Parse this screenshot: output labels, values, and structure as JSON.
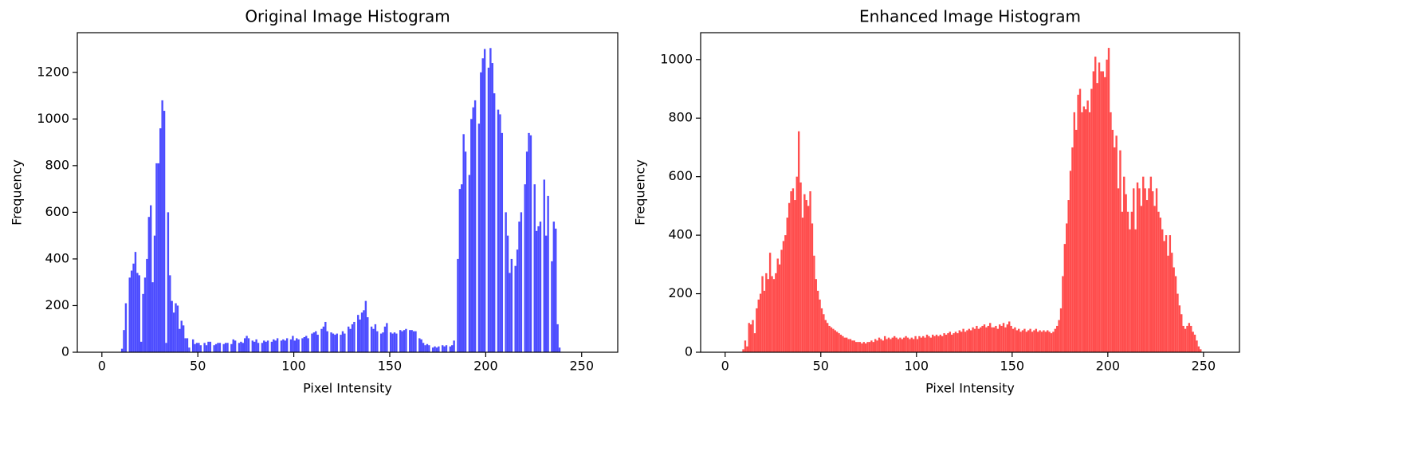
{
  "chart_data": [
    {
      "type": "histogram",
      "title": "Original Image Histogram",
      "xlabel": "Pixel Intensity",
      "ylabel": "Frequency",
      "color": "#4d4dff",
      "bins": [
        0,
        1,
        2,
        3,
        4,
        5,
        6,
        7,
        8,
        9,
        10,
        11,
        12,
        13,
        14,
        15,
        16,
        17,
        18,
        19,
        20,
        21,
        22,
        23,
        24,
        25,
        26,
        27,
        28,
        29,
        30,
        31,
        32,
        33,
        34,
        35,
        36,
        37,
        38,
        39,
        40,
        41,
        42,
        43,
        44,
        45,
        46,
        47,
        48,
        49,
        50,
        51,
        52,
        53,
        54,
        55,
        56,
        57,
        58,
        59,
        60,
        61,
        62,
        63,
        64,
        65,
        66,
        67,
        68,
        69,
        70,
        71,
        72,
        73,
        74,
        75,
        76,
        77,
        78,
        79,
        80,
        81,
        82,
        83,
        84,
        85,
        86,
        87,
        88,
        89,
        90,
        91,
        92,
        93,
        94,
        95,
        96,
        97,
        98,
        99,
        100,
        101,
        102,
        103,
        104,
        105,
        106,
        107,
        108,
        109,
        110,
        111,
        112,
        113,
        114,
        115,
        116,
        117,
        118,
        119,
        120,
        121,
        122,
        123,
        124,
        125,
        126,
        127,
        128,
        129,
        130,
        131,
        132,
        133,
        134,
        135,
        136,
        137,
        138,
        139,
        140,
        141,
        142,
        143,
        144,
        145,
        146,
        147,
        148,
        149,
        150,
        151,
        152,
        153,
        154,
        155,
        156,
        157,
        158,
        159,
        160,
        161,
        162,
        163,
        164,
        165,
        166,
        167,
        168,
        169,
        170,
        171,
        172,
        173,
        174,
        175,
        176,
        177,
        178,
        179,
        180,
        181,
        182,
        183,
        184,
        185,
        186,
        187,
        188,
        189,
        190,
        191,
        192,
        193,
        194,
        195,
        196,
        197,
        198,
        199,
        200,
        201,
        202,
        203,
        204,
        205,
        206,
        207,
        208,
        209,
        210,
        211,
        212,
        213,
        214,
        215,
        216,
        217,
        218,
        219,
        220,
        221,
        222,
        223,
        224,
        225,
        226,
        227,
        228,
        229,
        230,
        231,
        232,
        233,
        234,
        235,
        236,
        237,
        238,
        239,
        240,
        241,
        242,
        243,
        244,
        245,
        246,
        247,
        248,
        249,
        250,
        251,
        252,
        253,
        254,
        255,
        256
      ],
      "values": [
        0,
        0,
        0,
        0,
        0,
        0,
        0,
        0,
        0,
        0,
        15,
        95,
        210,
        0,
        320,
        350,
        380,
        430,
        340,
        330,
        45,
        250,
        320,
        400,
        580,
        630,
        300,
        500,
        810,
        810,
        960,
        1080,
        1035,
        40,
        600,
        330,
        220,
        170,
        210,
        200,
        100,
        135,
        115,
        60,
        60,
        20,
        0,
        55,
        35,
        40,
        40,
        30,
        0,
        40,
        30,
        45,
        45,
        0,
        30,
        35,
        40,
        40,
        0,
        35,
        40,
        40,
        0,
        35,
        55,
        50,
        0,
        40,
        45,
        40,
        60,
        70,
        60,
        0,
        50,
        45,
        55,
        40,
        0,
        40,
        50,
        45,
        50,
        0,
        45,
        55,
        50,
        60,
        0,
        50,
        55,
        50,
        60,
        0,
        55,
        70,
        50,
        60,
        55,
        0,
        60,
        65,
        70,
        60,
        0,
        80,
        85,
        90,
        75,
        0,
        100,
        110,
        130,
        90,
        0,
        85,
        80,
        75,
        80,
        0,
        75,
        90,
        80,
        0,
        110,
        100,
        120,
        130,
        0,
        160,
        140,
        170,
        180,
        220,
        150,
        0,
        110,
        100,
        120,
        90,
        0,
        80,
        85,
        110,
        125,
        0,
        85,
        80,
        85,
        80,
        0,
        95,
        90,
        95,
        100,
        0,
        95,
        95,
        90,
        90,
        0,
        60,
        55,
        40,
        30,
        35,
        30,
        0,
        20,
        25,
        20,
        25,
        0,
        30,
        25,
        30,
        0,
        25,
        30,
        50,
        0,
        400,
        700,
        720,
        935,
        860,
        0,
        760,
        1000,
        1050,
        1080,
        0,
        980,
        1200,
        1260,
        1300,
        0,
        1220,
        1304,
        1240,
        1110,
        0,
        1040,
        1020,
        940,
        0,
        600,
        500,
        340,
        400,
        0,
        370,
        440,
        560,
        600,
        0,
        720,
        860,
        940,
        930,
        0,
        720,
        520,
        540,
        560,
        0,
        740,
        500,
        670,
        0,
        390,
        560,
        530,
        120,
        20,
        0,
        0,
        0,
        0,
        0,
        0,
        0,
        0,
        0,
        0,
        0,
        0,
        0,
        0,
        0,
        0,
        0
      ],
      "xlim": [
        -12.8,
        268.8
      ],
      "ylim": [
        0,
        1370
      ],
      "xticks": [
        0,
        50,
        100,
        150,
        200,
        250
      ],
      "yticks": [
        0,
        200,
        400,
        600,
        800,
        1000,
        1200
      ]
    },
    {
      "type": "histogram",
      "title": "Enhanced Image Histogram",
      "xlabel": "Pixel Intensity",
      "ylabel": "Frequency",
      "color": "#ff4d4d",
      "bins": [
        0,
        1,
        2,
        3,
        4,
        5,
        6,
        7,
        8,
        9,
        10,
        11,
        12,
        13,
        14,
        15,
        16,
        17,
        18,
        19,
        20,
        21,
        22,
        23,
        24,
        25,
        26,
        27,
        28,
        29,
        30,
        31,
        32,
        33,
        34,
        35,
        36,
        37,
        38,
        39,
        40,
        41,
        42,
        43,
        44,
        45,
        46,
        47,
        48,
        49,
        50,
        51,
        52,
        53,
        54,
        55,
        56,
        57,
        58,
        59,
        60,
        61,
        62,
        63,
        64,
        65,
        66,
        67,
        68,
        69,
        70,
        71,
        72,
        73,
        74,
        75,
        76,
        77,
        78,
        79,
        80,
        81,
        82,
        83,
        84,
        85,
        86,
        87,
        88,
        89,
        90,
        91,
        92,
        93,
        94,
        95,
        96,
        97,
        98,
        99,
        100,
        101,
        102,
        103,
        104,
        105,
        106,
        107,
        108,
        109,
        110,
        111,
        112,
        113,
        114,
        115,
        116,
        117,
        118,
        119,
        120,
        121,
        122,
        123,
        124,
        125,
        126,
        127,
        128,
        129,
        130,
        131,
        132,
        133,
        134,
        135,
        136,
        137,
        138,
        139,
        140,
        141,
        142,
        143,
        144,
        145,
        146,
        147,
        148,
        149,
        150,
        151,
        152,
        153,
        154,
        155,
        156,
        157,
        158,
        159,
        160,
        161,
        162,
        163,
        164,
        165,
        166,
        167,
        168,
        169,
        170,
        171,
        172,
        173,
        174,
        175,
        176,
        177,
        178,
        179,
        180,
        181,
        182,
        183,
        184,
        185,
        186,
        187,
        188,
        189,
        190,
        191,
        192,
        193,
        194,
        195,
        196,
        197,
        198,
        199,
        200,
        201,
        202,
        203,
        204,
        205,
        206,
        207,
        208,
        209,
        210,
        211,
        212,
        213,
        214,
        215,
        216,
        217,
        218,
        219,
        220,
        221,
        222,
        223,
        224,
        225,
        226,
        227,
        228,
        229,
        230,
        231,
        232,
        233,
        234,
        235,
        236,
        237,
        238,
        239,
        240,
        241,
        242,
        243,
        244,
        245,
        246,
        247,
        248,
        249,
        250,
        251,
        252,
        253,
        254,
        255,
        256
      ],
      "values": [
        0,
        0,
        0,
        0,
        0,
        0,
        0,
        0,
        0,
        10,
        40,
        20,
        100,
        95,
        110,
        65,
        150,
        180,
        200,
        260,
        210,
        270,
        250,
        340,
        260,
        250,
        270,
        320,
        300,
        350,
        380,
        400,
        460,
        510,
        550,
        560,
        520,
        600,
        755,
        580,
        460,
        540,
        520,
        500,
        550,
        440,
        330,
        250,
        210,
        180,
        150,
        130,
        110,
        100,
        90,
        85,
        80,
        75,
        70,
        65,
        60,
        55,
        50,
        50,
        45,
        45,
        40,
        40,
        35,
        35,
        35,
        30,
        35,
        30,
        35,
        35,
        40,
        35,
        45,
        40,
        50,
        45,
        40,
        55,
        45,
        50,
        45,
        50,
        55,
        50,
        45,
        50,
        45,
        50,
        55,
        50,
        45,
        50,
        45,
        55,
        45,
        55,
        50,
        55,
        50,
        60,
        55,
        50,
        60,
        55,
        60,
        55,
        60,
        55,
        65,
        60,
        65,
        70,
        60,
        65,
        70,
        65,
        75,
        70,
        80,
        70,
        75,
        80,
        75,
        85,
        80,
        90,
        80,
        85,
        90,
        95,
        85,
        90,
        100,
        85,
        85,
        90,
        80,
        95,
        90,
        100,
        85,
        95,
        105,
        90,
        80,
        85,
        75,
        80,
        70,
        75,
        80,
        70,
        75,
        80,
        70,
        75,
        80,
        70,
        75,
        70,
        75,
        70,
        75,
        70,
        65,
        70,
        80,
        90,
        110,
        150,
        260,
        370,
        440,
        520,
        620,
        700,
        820,
        760,
        880,
        900,
        820,
        840,
        830,
        860,
        820,
        900,
        960,
        1010,
        920,
        990,
        960,
        960,
        940,
        1000,
        1040,
        820,
        760,
        700,
        740,
        560,
        690,
        480,
        600,
        540,
        480,
        420,
        480,
        560,
        420,
        580,
        560,
        500,
        600,
        560,
        520,
        560,
        600,
        550,
        500,
        560,
        480,
        460,
        420,
        380,
        400,
        330,
        400,
        340,
        290,
        260,
        200,
        160,
        130,
        90,
        80,
        90,
        100,
        90,
        70,
        60,
        40,
        20,
        10,
        0,
        0,
        0,
        0,
        0,
        0,
        0
      ],
      "xlim": [
        -12.8,
        268.8
      ],
      "ylim": [
        0,
        1092
      ],
      "xticks": [
        0,
        50,
        100,
        150,
        200,
        250
      ],
      "yticks": [
        0,
        200,
        400,
        600,
        800,
        1000
      ]
    }
  ]
}
